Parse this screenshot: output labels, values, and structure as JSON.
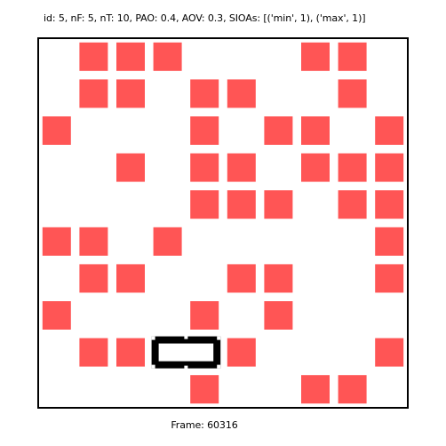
{
  "header": {
    "text": "id: 5, nF: 5, nT: 10, PAO: 0.4, AOV: 0.3, SIOAs: [('min', 1), ('max', 1)]"
  },
  "footer": {
    "text": "Frame: 60316"
  },
  "colors": {
    "cell": "#ff5555",
    "border": "#000000",
    "background": "#ffffff",
    "player": "#000000"
  },
  "grid": {
    "rows": 10,
    "cols": 10,
    "cells": [
      [
        0,
        1,
        1,
        1,
        0,
        0,
        0,
        1,
        1,
        0
      ],
      [
        0,
        1,
        1,
        0,
        1,
        1,
        0,
        0,
        1,
        0
      ],
      [
        1,
        0,
        0,
        0,
        1,
        0,
        1,
        1,
        0,
        1
      ],
      [
        0,
        0,
        1,
        0,
        1,
        1,
        0,
        1,
        1,
        1
      ],
      [
        0,
        0,
        0,
        0,
        1,
        1,
        1,
        0,
        1,
        1
      ],
      [
        1,
        1,
        0,
        1,
        0,
        0,
        0,
        0,
        0,
        1
      ],
      [
        0,
        1,
        1,
        0,
        0,
        1,
        1,
        0,
        0,
        1
      ],
      [
        1,
        0,
        0,
        0,
        1,
        0,
        1,
        0,
        0,
        0
      ],
      [
        0,
        1,
        1,
        0,
        0,
        1,
        0,
        0,
        0,
        1
      ],
      [
        0,
        0,
        0,
        0,
        1,
        0,
        0,
        1,
        1,
        0
      ]
    ]
  },
  "player": {
    "row": 8,
    "col_start": 3,
    "col_end": 4
  }
}
